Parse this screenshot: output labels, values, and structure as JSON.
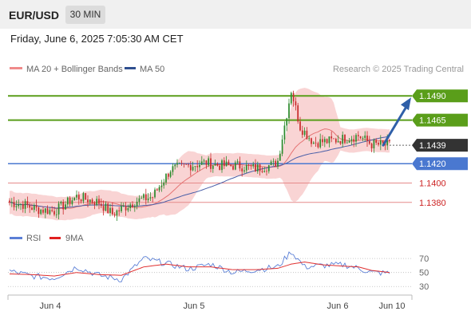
{
  "header": {
    "symbol": "EUR/USD",
    "timeframe": "30 MIN",
    "datetime": "Friday, June 6, 2025 7:05:30 AM CET"
  },
  "legend": {
    "ma20_label": "MA 20 + Bollinger Bands",
    "ma50_label": "MA 50",
    "credit": "Research © 2025 Trading Central",
    "rsi_label": "RSI",
    "rsi_ma_label": "9MA"
  },
  "colors": {
    "resistance": "#5a9e1a",
    "support": "#4a78d0",
    "support_minor": "#cc2222",
    "current": "#333333",
    "bull_candle": "#2e8b2e",
    "bear_candle": "#c82b2b",
    "bollinger_fill": "#f9d4d4",
    "ma20": "#e57373",
    "ma50": "#4a5fa8",
    "arrow": "#2f5fa8",
    "rsi": "#5b7fd6",
    "rsi_ma": "#e03030"
  },
  "chart_data": [
    {
      "type": "candlestick",
      "title": "EUR/USD",
      "timeframe": "30 MIN",
      "ylim": [
        1.1365,
        1.1505
      ],
      "x_tick_labels": [
        "Jun 4",
        "Jun 5",
        "Jun 6",
        "Jun 10"
      ],
      "close_path": [
        [
          0,
          1.138
        ],
        [
          6,
          1.1378
        ],
        [
          12,
          1.1373
        ],
        [
          20,
          1.1371
        ],
        [
          30,
          1.1386
        ],
        [
          40,
          1.138
        ],
        [
          46,
          1.1368
        ],
        [
          56,
          1.1381
        ],
        [
          64,
          1.1386
        ],
        [
          72,
          1.1414
        ],
        [
          80,
          1.1418
        ],
        [
          88,
          1.1421
        ],
        [
          94,
          1.1418
        ],
        [
          102,
          1.1418
        ],
        [
          110,
          1.1415
        ],
        [
          118,
          1.1419
        ],
        [
          120,
          1.1423
        ],
        [
          126,
          1.1496
        ],
        [
          130,
          1.1458
        ],
        [
          136,
          1.1442
        ],
        [
          142,
          1.1443
        ],
        [
          150,
          1.1446
        ],
        [
          156,
          1.1449
        ],
        [
          162,
          1.144
        ],
        [
          170,
          1.1439
        ]
      ],
      "series": [
        {
          "name": "MA 20 + Bollinger Bands"
        },
        {
          "name": "MA 50"
        }
      ],
      "price_levels": [
        {
          "label": "1.1490",
          "value": 1.149,
          "kind": "resistance"
        },
        {
          "label": "1.1465",
          "value": 1.1465,
          "kind": "resistance"
        },
        {
          "label": "1.1439",
          "value": 1.1439,
          "kind": "current"
        },
        {
          "label": "1.1420",
          "value": 1.142,
          "kind": "support"
        },
        {
          "label": "1.1400",
          "value": 1.14,
          "kind": "support_minor"
        },
        {
          "label": "1.1380",
          "value": 1.138,
          "kind": "support_minor"
        }
      ],
      "forecast": {
        "from": 1.1439,
        "to": 1.149
      }
    },
    {
      "type": "line",
      "series": [
        {
          "name": "RSI",
          "points": [
            [
              0,
              52
            ],
            [
              10,
              45
            ],
            [
              20,
              42
            ],
            [
              30,
              58
            ],
            [
              40,
              46
            ],
            [
              50,
              40
            ],
            [
              60,
              70
            ],
            [
              70,
              63
            ],
            [
              80,
              55
            ],
            [
              90,
              62
            ],
            [
              100,
              50
            ],
            [
              110,
              54
            ],
            [
              120,
              58
            ],
            [
              126,
              80
            ],
            [
              132,
              58
            ],
            [
              140,
              60
            ],
            [
              150,
              61
            ],
            [
              156,
              56
            ],
            [
              162,
              50
            ],
            [
              170,
              49
            ]
          ]
        },
        {
          "name": "9MA",
          "points": [
            [
              0,
              48
            ],
            [
              10,
              47
            ],
            [
              20,
              45
            ],
            [
              30,
              50
            ],
            [
              40,
              47
            ],
            [
              50,
              46
            ],
            [
              60,
              58
            ],
            [
              70,
              62
            ],
            [
              80,
              58
            ],
            [
              90,
              58
            ],
            [
              100,
              54
            ],
            [
              110,
              54
            ],
            [
              120,
              56
            ],
            [
              126,
              62
            ],
            [
              132,
              65
            ],
            [
              140,
              61
            ],
            [
              150,
              59
            ],
            [
              156,
              58
            ],
            [
              162,
              53
            ],
            [
              170,
              50
            ]
          ]
        }
      ],
      "ylim": [
        20,
        85
      ],
      "y_tick_labels": [
        "70",
        "50",
        "30"
      ]
    }
  ]
}
